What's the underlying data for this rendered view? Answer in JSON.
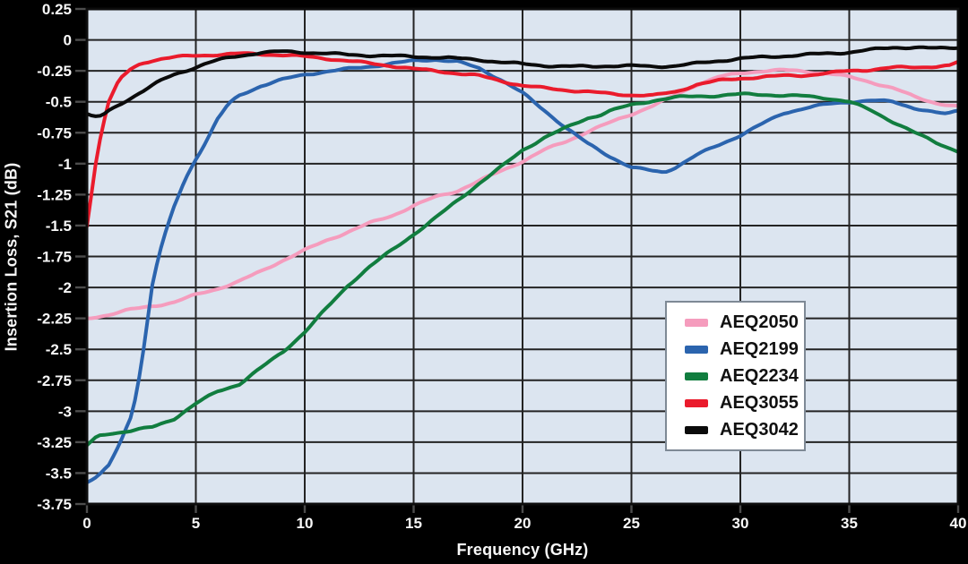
{
  "figure": {
    "background": "#000000",
    "plot_bg": "#dce5f0",
    "grid_color": "#232323",
    "tick_color": "#4d4d4d",
    "text_color": "#f8f8f8",
    "legend_border": "#7e8995",
    "legend_bg": "#ffffff"
  },
  "chart_data": {
    "type": "line",
    "title": "",
    "xlabel": "Frequency (GHz)",
    "ylabel": "Insertion Loss, S21 (dB)",
    "xlim": [
      0,
      40
    ],
    "ylim": [
      -3.75,
      0.25
    ],
    "x_ticks": [
      0,
      5,
      10,
      15,
      20,
      25,
      30,
      35,
      40
    ],
    "y_ticks": [
      0.25,
      0,
      -0.25,
      -0.5,
      -0.75,
      -1,
      -1.25,
      -1.5,
      -1.75,
      -2,
      -2.25,
      -2.5,
      -2.75,
      -3,
      -3.25,
      -3.5,
      -3.75
    ],
    "grid": true,
    "legend_position": "center-right",
    "series": [
      {
        "name": "AEQ2050",
        "color": "#f59cbd",
        "points": [
          [
            0,
            -2.25
          ],
          [
            1,
            -2.22
          ],
          [
            2,
            -2.18
          ],
          [
            3,
            -2.15
          ],
          [
            4,
            -2.12
          ],
          [
            5,
            -2.06
          ],
          [
            6,
            -2.01
          ],
          [
            7,
            -1.95
          ],
          [
            8,
            -1.87
          ],
          [
            9,
            -1.78
          ],
          [
            10,
            -1.7
          ],
          [
            11,
            -1.62
          ],
          [
            12,
            -1.55
          ],
          [
            13,
            -1.48
          ],
          [
            14,
            -1.42
          ],
          [
            15,
            -1.34
          ],
          [
            16,
            -1.27
          ],
          [
            17,
            -1.22
          ],
          [
            18,
            -1.14
          ],
          [
            19,
            -1.06
          ],
          [
            20,
            -0.98
          ],
          [
            21,
            -0.89
          ],
          [
            22,
            -0.82
          ],
          [
            23,
            -0.74
          ],
          [
            24,
            -0.67
          ],
          [
            25,
            -0.6
          ],
          [
            26,
            -0.53
          ],
          [
            27,
            -0.45
          ],
          [
            28,
            -0.36
          ],
          [
            29,
            -0.3
          ],
          [
            30,
            -0.27
          ],
          [
            31,
            -0.25
          ],
          [
            32,
            -0.245
          ],
          [
            33,
            -0.255
          ],
          [
            34,
            -0.27
          ],
          [
            35,
            -0.3
          ],
          [
            36,
            -0.34
          ],
          [
            37,
            -0.39
          ],
          [
            38,
            -0.46
          ],
          [
            39,
            -0.51
          ],
          [
            40,
            -0.54
          ]
        ]
      },
      {
        "name": "AEQ2199",
        "color": "#2b64ae",
        "points": [
          [
            0,
            -3.57
          ],
          [
            0.5,
            -3.53
          ],
          [
            1,
            -3.44
          ],
          [
            1.5,
            -3.27
          ],
          [
            2,
            -3.05
          ],
          [
            2.25,
            -2.87
          ],
          [
            2.5,
            -2.62
          ],
          [
            2.75,
            -2.31
          ],
          [
            3,
            -1.98
          ],
          [
            3.25,
            -1.78
          ],
          [
            3.5,
            -1.62
          ],
          [
            4,
            -1.35
          ],
          [
            4.5,
            -1.13
          ],
          [
            5,
            -0.96
          ],
          [
            5.5,
            -0.81
          ],
          [
            6,
            -0.64
          ],
          [
            6.5,
            -0.52
          ],
          [
            7,
            -0.45
          ],
          [
            7.5,
            -0.41
          ],
          [
            8,
            -0.37
          ],
          [
            9,
            -0.32
          ],
          [
            10,
            -0.28
          ],
          [
            11,
            -0.255
          ],
          [
            12,
            -0.235
          ],
          [
            13,
            -0.215
          ],
          [
            14,
            -0.19
          ],
          [
            15,
            -0.17
          ],
          [
            16,
            -0.158
          ],
          [
            17,
            -0.175
          ],
          [
            18,
            -0.23
          ],
          [
            19,
            -0.32
          ],
          [
            20,
            -0.43
          ],
          [
            21,
            -0.57
          ],
          [
            22,
            -0.71
          ],
          [
            23,
            -0.84
          ],
          [
            24,
            -0.94
          ],
          [
            25,
            -1.03
          ],
          [
            26,
            -1.06
          ],
          [
            26.5,
            -1.07
          ],
          [
            27,
            -1.03
          ],
          [
            28,
            -0.93
          ],
          [
            29,
            -0.85
          ],
          [
            30,
            -0.77
          ],
          [
            31,
            -0.68
          ],
          [
            32,
            -0.59
          ],
          [
            33,
            -0.55
          ],
          [
            34,
            -0.52
          ],
          [
            35,
            -0.5
          ],
          [
            36,
            -0.49
          ],
          [
            37,
            -0.5
          ],
          [
            38,
            -0.55
          ],
          [
            39,
            -0.59
          ],
          [
            39.5,
            -0.6
          ],
          [
            40,
            -0.57
          ]
        ]
      },
      {
        "name": "AEQ2234",
        "color": "#117d3f",
        "points": [
          [
            0,
            -3.28
          ],
          [
            0.5,
            -3.2
          ],
          [
            1,
            -3.18
          ],
          [
            2,
            -3.16
          ],
          [
            3,
            -3.13
          ],
          [
            4,
            -3.06
          ],
          [
            5,
            -2.94
          ],
          [
            6,
            -2.84
          ],
          [
            7,
            -2.78
          ],
          [
            8,
            -2.65
          ],
          [
            9,
            -2.52
          ],
          [
            10,
            -2.36
          ],
          [
            11,
            -2.17
          ],
          [
            12,
            -1.98
          ],
          [
            13,
            -1.83
          ],
          [
            14,
            -1.7
          ],
          [
            15,
            -1.57
          ],
          [
            16,
            -1.44
          ],
          [
            17,
            -1.3
          ],
          [
            18,
            -1.16
          ],
          [
            19,
            -1.03
          ],
          [
            20,
            -0.89
          ],
          [
            21,
            -0.79
          ],
          [
            22,
            -0.71
          ],
          [
            23,
            -0.63
          ],
          [
            23.5,
            -0.61
          ],
          [
            24,
            -0.575
          ],
          [
            25,
            -0.525
          ],
          [
            26,
            -0.49
          ],
          [
            27,
            -0.465
          ],
          [
            28,
            -0.455
          ],
          [
            29,
            -0.45
          ],
          [
            30,
            -0.44
          ],
          [
            31,
            -0.44
          ],
          [
            32,
            -0.45
          ],
          [
            33,
            -0.455
          ],
          [
            34,
            -0.47
          ],
          [
            35,
            -0.5
          ],
          [
            36,
            -0.57
          ],
          [
            37,
            -0.66
          ],
          [
            38,
            -0.75
          ],
          [
            39,
            -0.83
          ],
          [
            40,
            -0.9
          ]
        ]
      },
      {
        "name": "AEQ3055",
        "color": "#ea1b2c",
        "points": [
          [
            0,
            -1.5
          ],
          [
            0.2,
            -1.25
          ],
          [
            0.4,
            -1.0
          ],
          [
            0.65,
            -0.75
          ],
          [
            1,
            -0.5
          ],
          [
            1.5,
            -0.32
          ],
          [
            2,
            -0.24
          ],
          [
            2.5,
            -0.19
          ],
          [
            3,
            -0.165
          ],
          [
            3.5,
            -0.15
          ],
          [
            4,
            -0.14
          ],
          [
            5,
            -0.128
          ],
          [
            6,
            -0.118
          ],
          [
            7,
            -0.112
          ],
          [
            8,
            -0.115
          ],
          [
            9,
            -0.122
          ],
          [
            10,
            -0.135
          ],
          [
            11,
            -0.15
          ],
          [
            12,
            -0.17
          ],
          [
            13,
            -0.19
          ],
          [
            14,
            -0.21
          ],
          [
            15,
            -0.235
          ],
          [
            16,
            -0.25
          ],
          [
            17,
            -0.27
          ],
          [
            18,
            -0.29
          ],
          [
            19,
            -0.33
          ],
          [
            20,
            -0.37
          ],
          [
            21,
            -0.39
          ],
          [
            22,
            -0.405
          ],
          [
            23,
            -0.42
          ],
          [
            24,
            -0.435
          ],
          [
            25,
            -0.445
          ],
          [
            26,
            -0.45
          ],
          [
            27,
            -0.42
          ],
          [
            28,
            -0.36
          ],
          [
            29,
            -0.33
          ],
          [
            30,
            -0.31
          ],
          [
            31,
            -0.3
          ],
          [
            32,
            -0.29
          ],
          [
            33,
            -0.285
          ],
          [
            34,
            -0.27
          ],
          [
            35,
            -0.25
          ],
          [
            36,
            -0.24
          ],
          [
            37,
            -0.225
          ],
          [
            38,
            -0.22
          ],
          [
            39,
            -0.215
          ],
          [
            39.6,
            -0.21
          ],
          [
            40,
            -0.18
          ]
        ]
      },
      {
        "name": "AEQ3042",
        "color": "#0b0b0b",
        "points": [
          [
            0,
            -0.6
          ],
          [
            0.3,
            -0.625
          ],
          [
            0.7,
            -0.615
          ],
          [
            1,
            -0.575
          ],
          [
            1.5,
            -0.52
          ],
          [
            2,
            -0.47
          ],
          [
            2.5,
            -0.42
          ],
          [
            3,
            -0.37
          ],
          [
            3.5,
            -0.32
          ],
          [
            4,
            -0.28
          ],
          [
            4.5,
            -0.25
          ],
          [
            5,
            -0.22
          ],
          [
            5.5,
            -0.19
          ],
          [
            6,
            -0.165
          ],
          [
            6.5,
            -0.145
          ],
          [
            7,
            -0.128
          ],
          [
            7.5,
            -0.115
          ],
          [
            8,
            -0.103
          ],
          [
            9,
            -0.095
          ],
          [
            10,
            -0.1
          ],
          [
            11,
            -0.11
          ],
          [
            12,
            -0.12
          ],
          [
            13,
            -0.125
          ],
          [
            14,
            -0.13
          ],
          [
            15,
            -0.135
          ],
          [
            16,
            -0.14
          ],
          [
            17,
            -0.15
          ],
          [
            18,
            -0.16
          ],
          [
            19,
            -0.18
          ],
          [
            20,
            -0.195
          ],
          [
            21,
            -0.207
          ],
          [
            22,
            -0.215
          ],
          [
            23,
            -0.215
          ],
          [
            24,
            -0.21
          ],
          [
            25,
            -0.21
          ],
          [
            26,
            -0.215
          ],
          [
            27,
            -0.21
          ],
          [
            28,
            -0.19
          ],
          [
            29,
            -0.17
          ],
          [
            30,
            -0.15
          ],
          [
            31,
            -0.14
          ],
          [
            32,
            -0.13
          ],
          [
            33,
            -0.12
          ],
          [
            34,
            -0.11
          ],
          [
            35,
            -0.1
          ],
          [
            36,
            -0.08
          ],
          [
            37,
            -0.062
          ],
          [
            38,
            -0.06
          ],
          [
            39,
            -0.07
          ],
          [
            40,
            -0.06
          ]
        ]
      }
    ]
  }
}
